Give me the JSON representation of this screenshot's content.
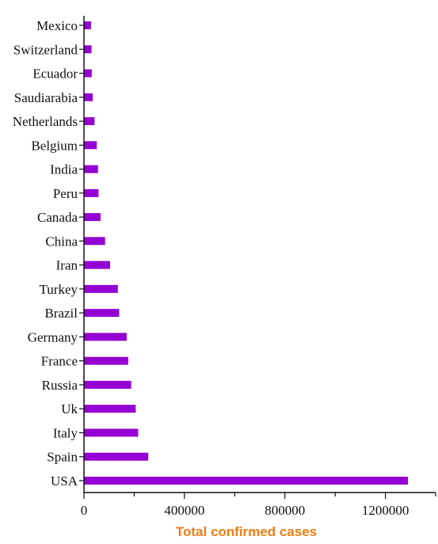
{
  "chart_data": {
    "type": "bar",
    "orientation": "horizontal",
    "xlabel": "Total confirmed cases",
    "xlim": [
      0,
      1400000
    ],
    "xticks": [
      0,
      400000,
      800000,
      1200000
    ],
    "xtick_labels": [
      "0",
      "400000",
      "800000",
      "1200000"
    ],
    "grid": false,
    "categories": [
      "Mexico",
      "Switzerland",
      "Ecuador",
      "Saudiarabia",
      "Netherlands",
      "Belgium",
      "India",
      "Peru",
      "Canada",
      "China",
      "Iran",
      "Turkey",
      "Brazil",
      "Germany",
      "France",
      "Russia",
      "Uk",
      "Italy",
      "Spain",
      "USA"
    ],
    "values": [
      28000,
      30000,
      31000,
      35000,
      42000,
      51000,
      56000,
      58000,
      66000,
      84000,
      104000,
      135000,
      140000,
      170000,
      176000,
      188000,
      206000,
      216000,
      256000,
      1290000
    ],
    "colors": {
      "bar": "#9400d3",
      "axis": "#111111",
      "xlabel": "#f27b13"
    }
  }
}
